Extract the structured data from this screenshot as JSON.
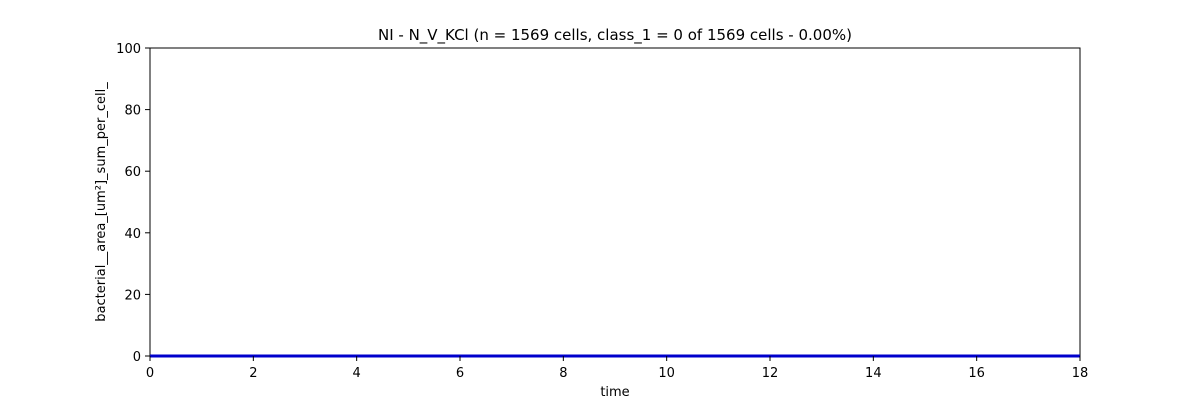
{
  "chart_data": {
    "type": "line",
    "title": "NI - N_V_KCl (n = 1569 cells, class_1 = 0 of 1569 cells - 0.00%)",
    "xlabel": "time",
    "ylabel": "bacterial__area_[um²]_sum_per_cell_",
    "xlim": [
      0,
      18
    ],
    "ylim": [
      0,
      100
    ],
    "xticks": [
      0,
      2,
      4,
      6,
      8,
      10,
      12,
      14,
      16,
      18
    ],
    "yticks": [
      0,
      20,
      40,
      60,
      80,
      100
    ],
    "xtick_labels": [
      "0",
      "2",
      "4",
      "6",
      "8",
      "10",
      "12",
      "14",
      "16",
      "18"
    ],
    "ytick_labels": [
      "0",
      "20",
      "40",
      "60",
      "80",
      "100"
    ],
    "grid": false,
    "legend": "none",
    "series": [
      {
        "color": "#0000cc",
        "x": [
          0,
          1,
          2,
          3,
          4,
          5,
          6,
          7,
          8,
          9,
          10,
          11,
          12,
          13,
          14,
          15,
          16,
          17,
          18
        ],
        "y": [
          0,
          0,
          0,
          0,
          0,
          0,
          0,
          0,
          0,
          0,
          0,
          0,
          0,
          0,
          0,
          0,
          0,
          0,
          0
        ]
      }
    ]
  }
}
